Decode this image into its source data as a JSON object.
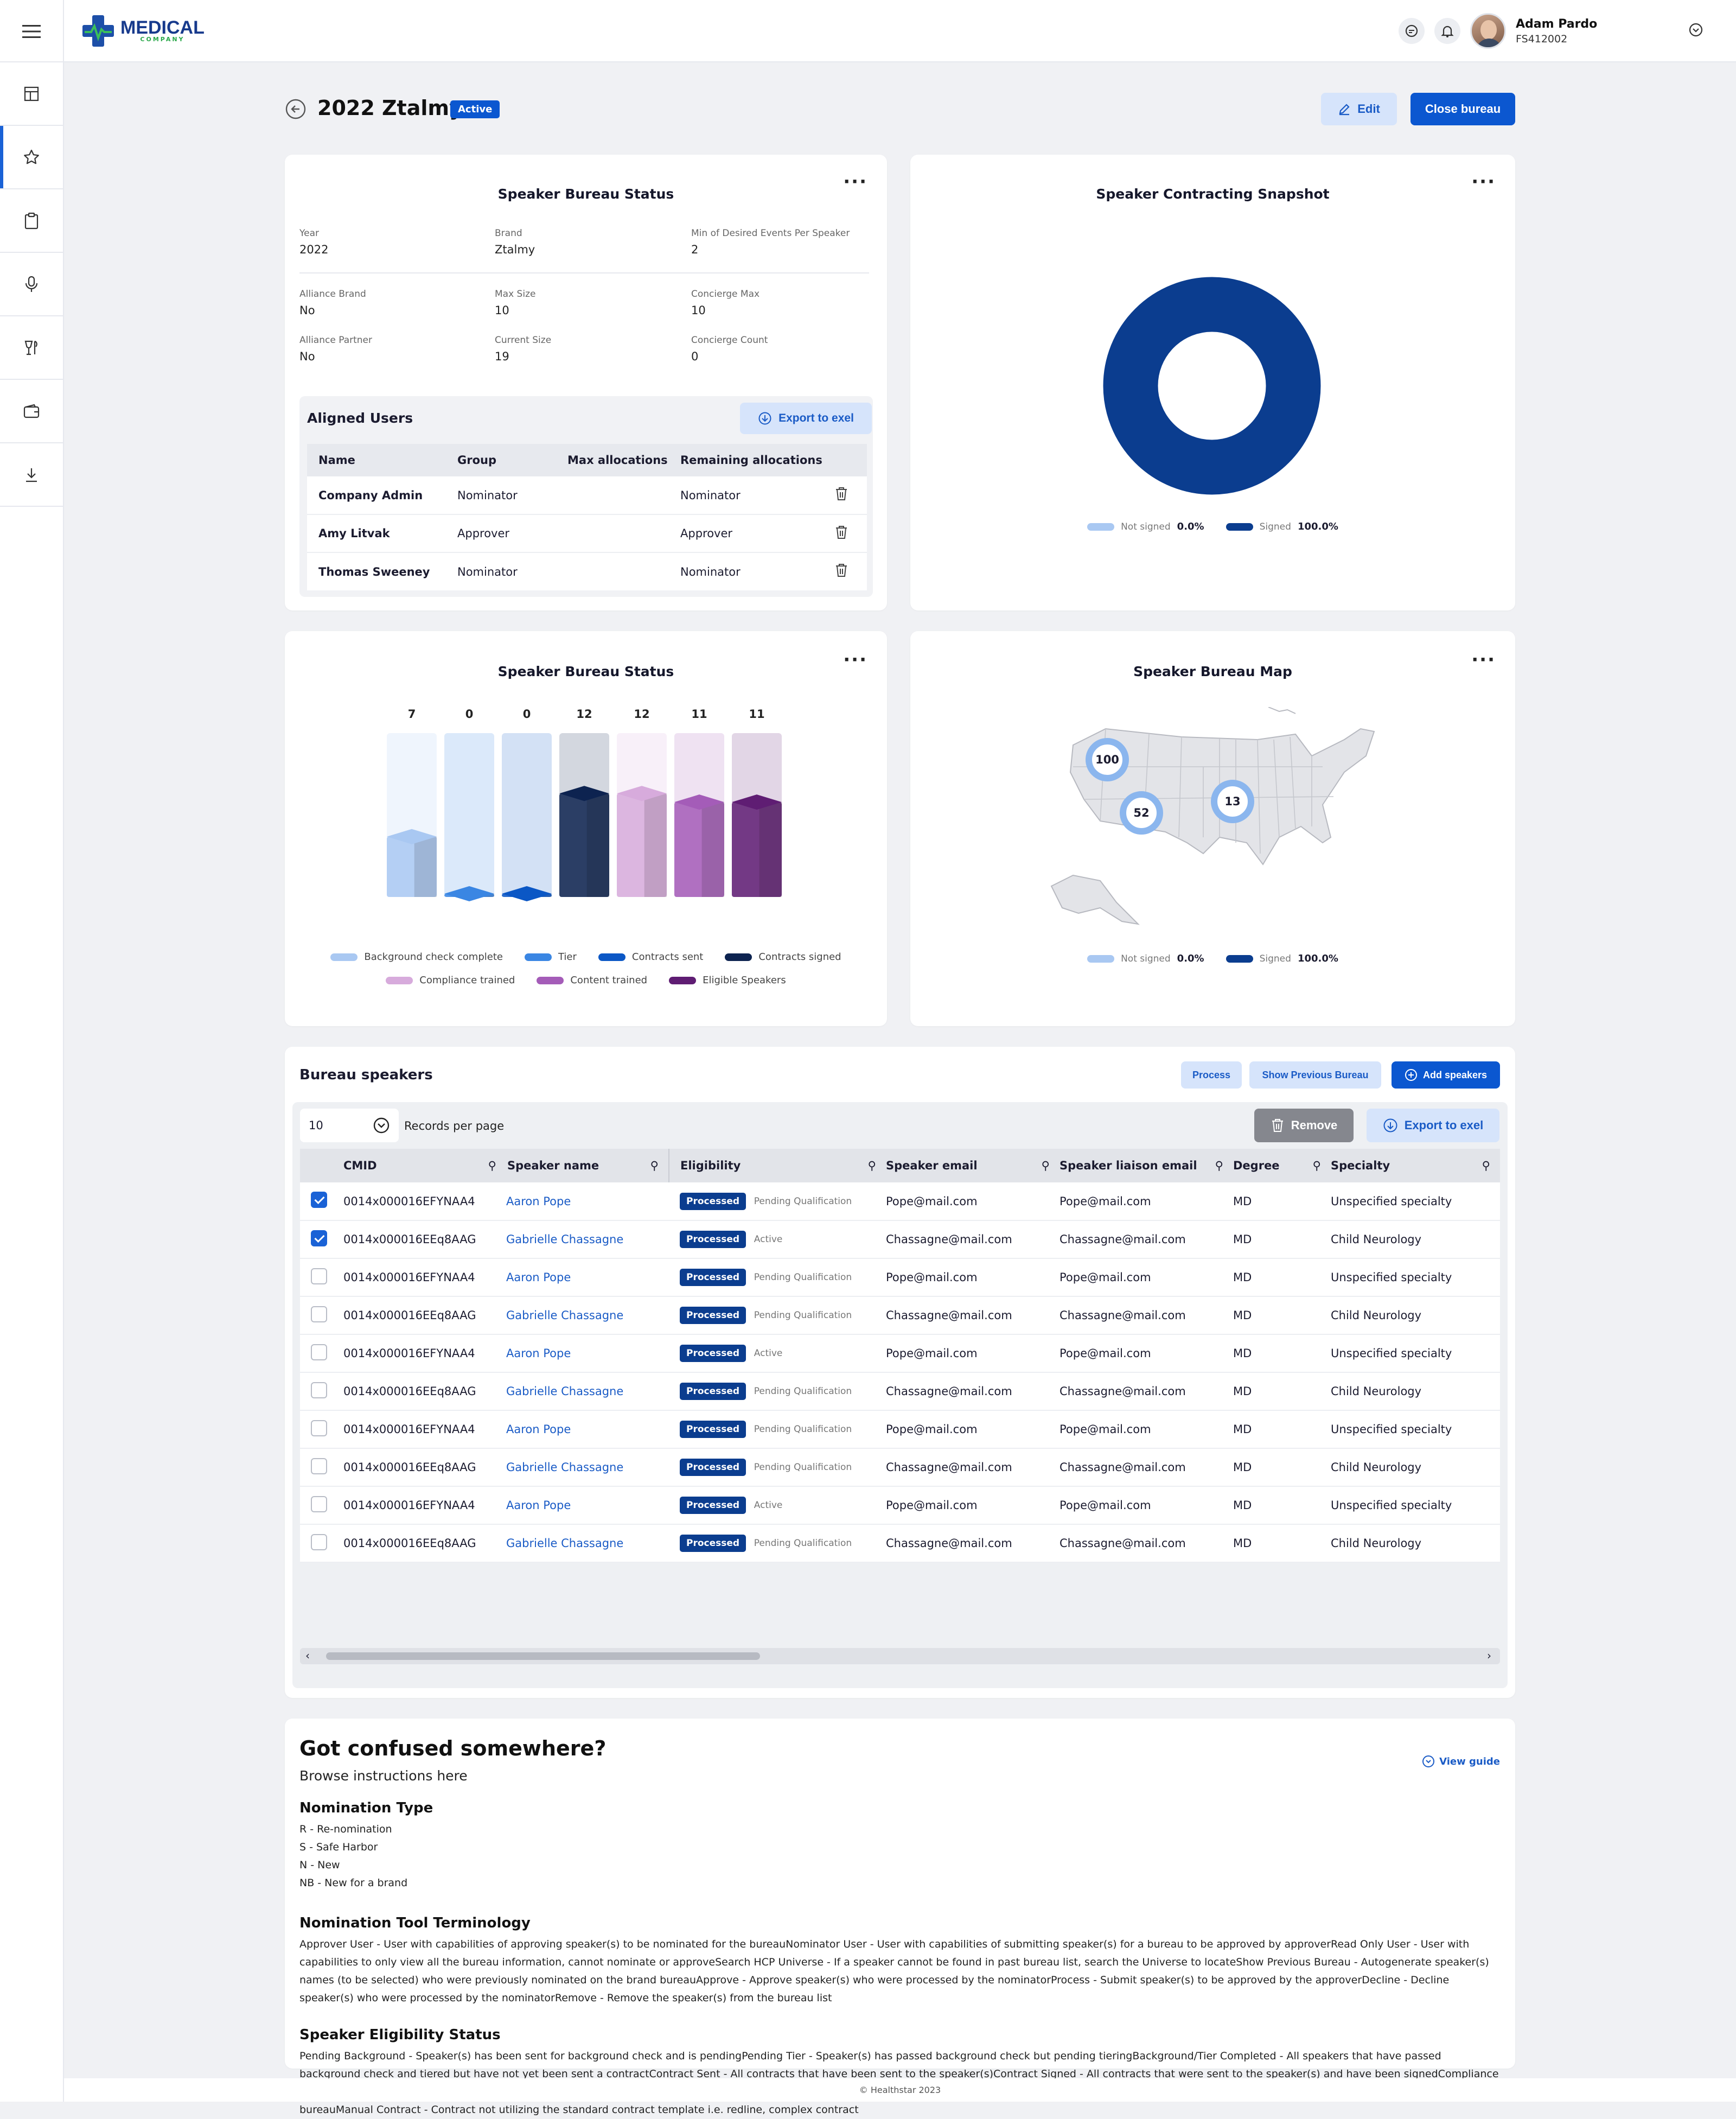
{
  "header": {
    "logo_main": "MEDICAL",
    "logo_sub": "COMPANY",
    "user_name": "Adam Pardo",
    "user_id": "FS412002"
  },
  "page": {
    "back_label": "back",
    "title": "2022 Ztalmy",
    "status": "Active",
    "edit_label": "Edit",
    "close_label": "Close bureau"
  },
  "status_card": {
    "title": "Speaker Bureau Status",
    "fields": [
      {
        "label": "Year",
        "value": "2022"
      },
      {
        "label": "Brand",
        "value": "Ztalmy"
      },
      {
        "label": "Min of Desired Events Per Speaker",
        "value": "2"
      },
      {
        "label": "Alliance Brand",
        "value": "No"
      },
      {
        "label": "Max Size",
        "value": "10"
      },
      {
        "label": "Concierge Max",
        "value": "10"
      },
      {
        "label": "Alliance Partner",
        "value": "No"
      },
      {
        "label": "Current Size",
        "value": "19"
      },
      {
        "label": "Concierge Count",
        "value": "0"
      }
    ],
    "aligned_title": "Aligned Users",
    "export_label": "Export to exel",
    "columns": [
      "Name",
      "Group",
      "Max allocations",
      "Remaining allocations"
    ],
    "rows": [
      {
        "name": "Company Admin",
        "group": "Nominator",
        "max": "",
        "remaining": "Nominator"
      },
      {
        "name": "Amy Litvak",
        "group": "Approver",
        "max": "",
        "remaining": "Approver"
      },
      {
        "name": "Thomas Sweeney",
        "group": "Nominator",
        "max": "",
        "remaining": "Nominator"
      }
    ]
  },
  "snapshot": {
    "title": "Speaker Contracting Snapshot",
    "legend": [
      {
        "label": "Not signed",
        "value": "0.0%",
        "color": "#a9c8f2"
      },
      {
        "label": "Signed",
        "value": "100.0%",
        "color": "#0b3d8f"
      }
    ]
  },
  "bureau_chart": {
    "title": "Speaker Bureau Status",
    "legend": [
      {
        "label": "Background check complete",
        "color": "#a9c8f2"
      },
      {
        "label": "Tier",
        "color": "#3a86e3"
      },
      {
        "label": "Contracts sent",
        "color": "#0b57c5"
      },
      {
        "label": "Contracts signed",
        "color": "#0d2350"
      },
      {
        "label": "Compliance trained",
        "color": "#d7abdc"
      },
      {
        "label": "Content trained",
        "color": "#a45cb8"
      },
      {
        "label": "Eligible Speakers",
        "color": "#5f1d73"
      }
    ]
  },
  "chart_data": {
    "type": "bar",
    "categories": [
      "Background check complete",
      "Tier",
      "Contracts sent",
      "Contracts signed",
      "Compliance trained",
      "Content trained",
      "Eligible Speakers"
    ],
    "values": [
      7,
      0,
      0,
      12,
      12,
      11,
      11
    ],
    "title": "Speaker Bureau Status",
    "ylim": [
      0,
      19
    ]
  },
  "map_card": {
    "title": "Speaker Bureau Map",
    "markers": [
      "100",
      "52",
      "13"
    ],
    "legend": [
      {
        "label": "Not signed",
        "value": "0.0%",
        "color": "#a9c8f2"
      },
      {
        "label": "Signed",
        "value": "100.0%",
        "color": "#0b3d8f"
      }
    ]
  },
  "speakers": {
    "title": "Bureau speakers",
    "process_label": "Process",
    "show_prev_label": "Show Previous Bureau",
    "add_label": "Add speakers",
    "per_page": "10",
    "per_page_label": "Records per page",
    "remove_label": "Remove",
    "export_label": "Export to exel",
    "columns": [
      "CMID",
      "Speaker name",
      "Eligibility",
      "Speaker email",
      "Speaker liaison email",
      "Degree",
      "Specialty"
    ],
    "rows": [
      {
        "checked": true,
        "cmid": "0014x000016EFYNAA4",
        "name": "Aaron Pope",
        "pill": "Processed",
        "elig": "Pending Qualification",
        "email": "Pope@mail.com",
        "liaison": "Pope@mail.com",
        "degree": "MD",
        "specialty": "Unspecified specialty"
      },
      {
        "checked": true,
        "cmid": "0014x000016EEq8AAG",
        "name": "Gabrielle Chassagne",
        "pill": "Processed",
        "elig": "Active",
        "email": "Chassagne@mail.com",
        "liaison": "Chassagne@mail.com",
        "degree": "MD",
        "specialty": "Child Neurology"
      },
      {
        "checked": false,
        "cmid": "0014x000016EFYNAA4",
        "name": "Aaron Pope",
        "pill": "Processed",
        "elig": "Pending Qualification",
        "email": "Pope@mail.com",
        "liaison": "Pope@mail.com",
        "degree": "MD",
        "specialty": "Unspecified specialty"
      },
      {
        "checked": false,
        "cmid": "0014x000016EEq8AAG",
        "name": "Gabrielle Chassagne",
        "pill": "Processed",
        "elig": "Pending Qualification",
        "email": "Chassagne@mail.com",
        "liaison": "Chassagne@mail.com",
        "degree": "MD",
        "specialty": "Child Neurology"
      },
      {
        "checked": false,
        "cmid": "0014x000016EFYNAA4",
        "name": "Aaron Pope",
        "pill": "Processed",
        "elig": "Active",
        "email": "Pope@mail.com",
        "liaison": "Pope@mail.com",
        "degree": "MD",
        "specialty": "Unspecified specialty"
      },
      {
        "checked": false,
        "cmid": "0014x000016EEq8AAG",
        "name": "Gabrielle Chassagne",
        "pill": "Processed",
        "elig": "Pending Qualification",
        "email": "Chassagne@mail.com",
        "liaison": "Chassagne@mail.com",
        "degree": "MD",
        "specialty": "Child Neurology"
      },
      {
        "checked": false,
        "cmid": "0014x000016EFYNAA4",
        "name": "Aaron Pope",
        "pill": "Processed",
        "elig": "Pending Qualification",
        "email": "Pope@mail.com",
        "liaison": "Pope@mail.com",
        "degree": "MD",
        "specialty": "Unspecified specialty"
      },
      {
        "checked": false,
        "cmid": "0014x000016EEq8AAG",
        "name": "Gabrielle Chassagne",
        "pill": "Processed",
        "elig": "Pending Qualification",
        "email": "Chassagne@mail.com",
        "liaison": "Chassagne@mail.com",
        "degree": "MD",
        "specialty": "Child Neurology"
      },
      {
        "checked": false,
        "cmid": "0014x000016EFYNAA4",
        "name": "Aaron Pope",
        "pill": "Processed",
        "elig": "Active",
        "email": "Pope@mail.com",
        "liaison": "Pope@mail.com",
        "degree": "MD",
        "specialty": "Unspecified specialty"
      },
      {
        "checked": false,
        "cmid": "0014x000016EEq8AAG",
        "name": "Gabrielle Chassagne",
        "pill": "Processed",
        "elig": "Pending Qualification",
        "email": "Chassagne@mail.com",
        "liaison": "Chassagne@mail.com",
        "degree": "MD",
        "specialty": "Child Neurology"
      }
    ]
  },
  "help": {
    "title": "Got confused somewhere?",
    "subtitle": "Browse instructions here",
    "view_guide": "View guide",
    "sections": [
      {
        "heading": "Nomination Type",
        "lines": [
          "R - Re-nomination",
          "S - Safe Harbor",
          "N - New",
          "NB - New for a brand"
        ]
      },
      {
        "heading": "Nomination Tool Terminology",
        "lines": [
          "Approver User - User with capabilities of approving speaker(s) to be nominated for the bureauNominator User - User with capabilities of submitting speaker(s) for a bureau to be approved by approverRead Only User - User with capabilities to only view all the bureau information, cannot nominate or approveSearch HCP Universe - If a speaker cannot be found in past bureau list, search the Universe to locateShow Previous Bureau - Autogenerate speaker(s) names (to be selected) who were previously nominated on the brand bureauApprove - Approve speaker(s) who were processed by the nominatorProcess - Submit speaker(s) to be approved by the approverDecline - Decline speaker(s) who were processed by the nominatorRemove - Remove the speaker(s) from the bureau list"
        ]
      },
      {
        "heading": "Speaker Eligibility Status",
        "lines": [
          "Pending Background - Speaker(s) has been sent for background check and is pendingPending Tier - Speaker(s) has passed background check but pending tieringBackground/Tier Completed - All speakers that have passed background check and tiered but have not yet been sent a contractContract Sent - All contracts that have been sent to the speaker(s)Contract Signed - All contracts that were sent to the speaker(s) and have been signedCompliance Trained - Speaker has signed contract and completed their compliance trainingContent Trained - Speaker completed contract, compliance training and topic trainingEligible Speaker - All speakers that are ready to be utilized in the bureauManual Contract - Contract not utilizing the standard contract template i.e. redline, complex contract"
        ]
      }
    ]
  },
  "footer": {
    "text": "© Healthstar 2023"
  }
}
